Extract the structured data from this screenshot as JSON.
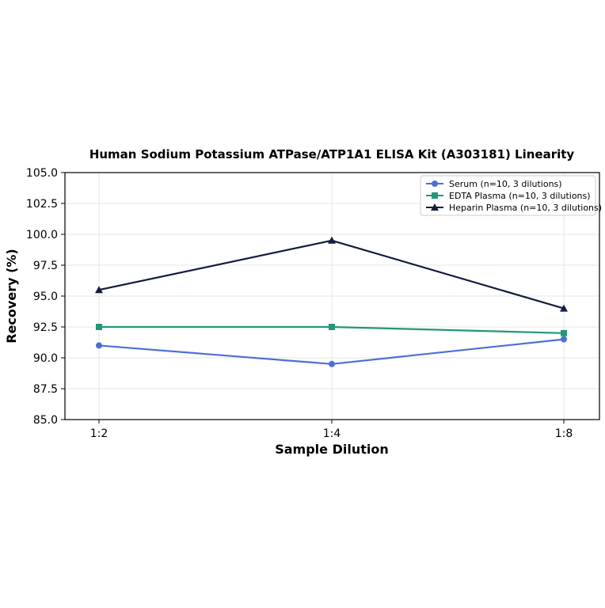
{
  "chart_data": {
    "type": "line",
    "title": "Human Sodium Potassium ATPase/ATP1A1 ELISA Kit (A303181) Linearity",
    "xlabel": "Sample Dilution",
    "ylabel": "Recovery (%)",
    "categories": [
      "1:2",
      "1:4",
      "1:8"
    ],
    "ylim": [
      85.0,
      105.0
    ],
    "yticks": [
      "85.0",
      "87.5",
      "90.0",
      "92.5",
      "95.0",
      "97.5",
      "100.0",
      "102.5",
      "105.0"
    ],
    "grid": true,
    "legend_position": "top-right",
    "series": [
      {
        "name": "Serum (n=10, 3 dilutions)",
        "values": [
          91.0,
          89.5,
          91.5
        ],
        "color": "#4c6fd6",
        "marker": "circle"
      },
      {
        "name": "EDTA Plasma (n=10, 3 dilutions)",
        "values": [
          92.5,
          92.5,
          92.0
        ],
        "color": "#23977a",
        "marker": "square"
      },
      {
        "name": "Heparin Plasma (n=10, 3 dilutions)",
        "values": [
          95.5,
          99.5,
          94.0
        ],
        "color": "#131c3e",
        "marker": "triangle"
      }
    ]
  }
}
